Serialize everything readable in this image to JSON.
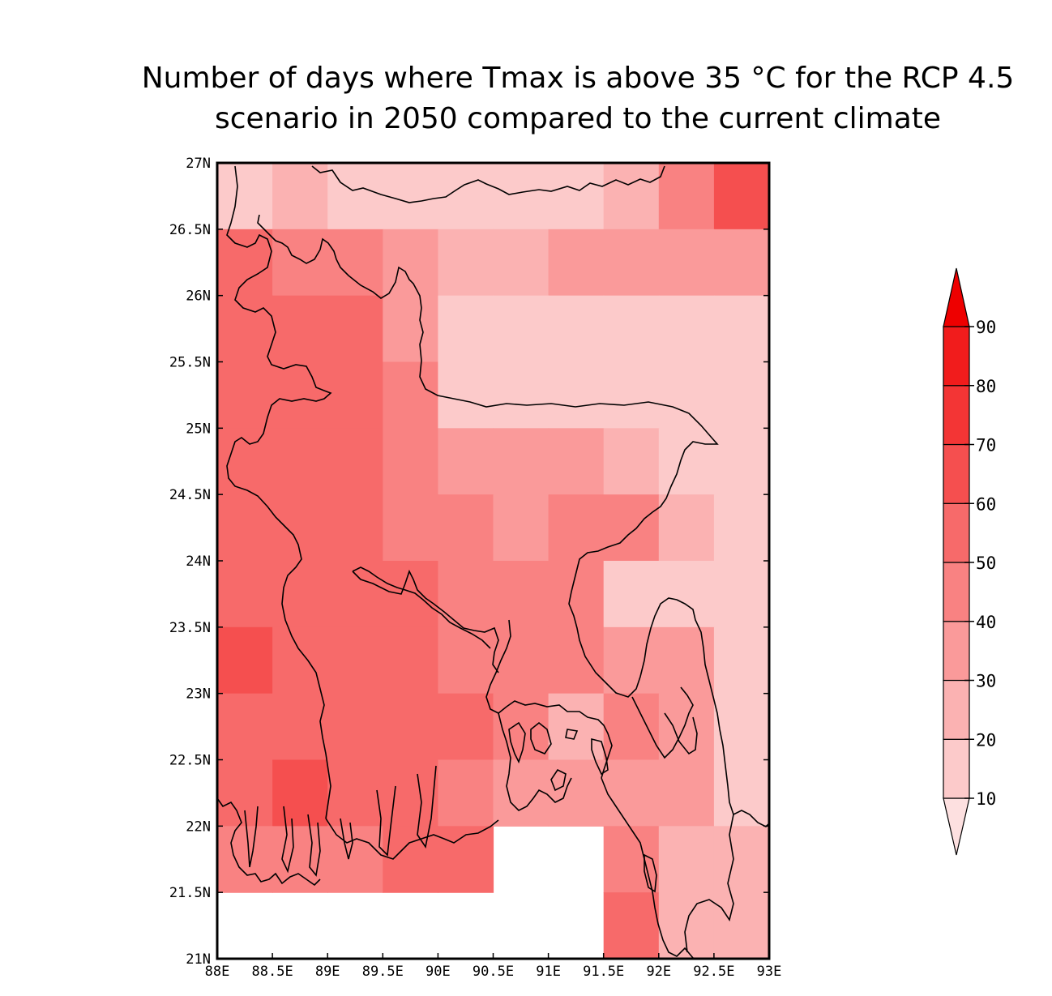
{
  "title": {
    "line1": "Number of days where Tmax is above 35 °C for the RCP 4.5",
    "line2": "scenario in 2050 compared to the current climate"
  },
  "chart_data": {
    "type": "heatmap",
    "x_ticks": [
      "88E",
      "88.5E",
      "89E",
      "89.5E",
      "90E",
      "90.5E",
      "91E",
      "91.5E",
      "92E",
      "92.5E",
      "93E"
    ],
    "y_ticks": [
      "27N",
      "26.5N",
      "26N",
      "25.5N",
      "25N",
      "24.5N",
      "24N",
      "23.5N",
      "23N",
      "22.5N",
      "22N",
      "21.5N",
      "21N"
    ],
    "lon_range": [
      88,
      93
    ],
    "lat_range": [
      21,
      27
    ],
    "grid_step_deg": 0.5,
    "colorbar": {
      "levels": [
        10,
        20,
        30,
        40,
        50,
        60,
        70,
        80,
        90
      ],
      "colors": [
        "#fde0e0",
        "#fccaca",
        "#fbb2b2",
        "#fa9a9a",
        "#f98282",
        "#f76a6a",
        "#f54f4f",
        "#f33535",
        "#f11c1c",
        "#ee0000"
      ]
    },
    "cells_bins_north_to_south": [
      [
        1,
        2,
        1,
        1,
        1,
        1,
        1,
        2,
        4,
        6
      ],
      [
        5,
        4,
        4,
        3,
        2,
        2,
        3,
        3,
        3,
        3
      ],
      [
        5,
        5,
        5,
        3,
        1,
        1,
        1,
        1,
        1,
        1
      ],
      [
        5,
        5,
        5,
        4,
        1,
        1,
        1,
        1,
        1,
        1
      ],
      [
        5,
        5,
        5,
        4,
        3,
        3,
        3,
        2,
        1,
        1
      ],
      [
        5,
        5,
        5,
        4,
        4,
        3,
        4,
        4,
        2,
        1
      ],
      [
        5,
        5,
        5,
        5,
        4,
        4,
        4,
        1,
        1,
        1
      ],
      [
        6,
        5,
        5,
        5,
        4,
        4,
        4,
        3,
        3,
        1
      ],
      [
        5,
        5,
        5,
        5,
        5,
        4,
        2,
        4,
        3,
        1
      ],
      [
        5,
        6,
        5,
        5,
        4,
        3,
        3,
        3,
        3,
        1
      ],
      [
        4,
        4,
        4,
        5,
        5,
        null,
        null,
        4,
        2,
        2
      ],
      [
        null,
        null,
        null,
        null,
        null,
        null,
        null,
        5,
        2,
        2
      ]
    ],
    "legend_position": "right"
  }
}
